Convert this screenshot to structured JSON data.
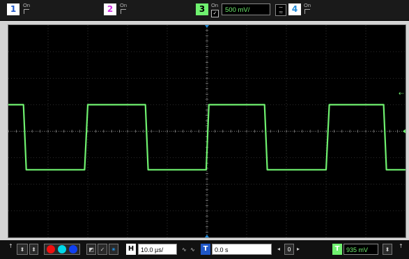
{
  "channels": [
    {
      "number": "1",
      "state": "On",
      "color": "#ffd200"
    },
    {
      "number": "2",
      "state": "On",
      "color": "#e040ff"
    },
    {
      "number": "3",
      "state": "On",
      "color": "#6ff16f"
    },
    {
      "number": "4",
      "state": "On",
      "color": "#40a0ff"
    }
  ],
  "ch3_scale": "500 mV/",
  "horizontal": {
    "label": "H",
    "scale": "10.0 µs/"
  },
  "trigger_time": {
    "label": "T",
    "value": "0.0 s"
  },
  "trigger_level": {
    "label": "T",
    "value": "935 mV"
  },
  "nav": {
    "zero": "0"
  },
  "colors": {
    "trace": "#6ff16f",
    "grid_bg": "#000000",
    "bar": "#1a1a1a"
  },
  "chart_data": {
    "type": "line",
    "description_kind": "square-wave trace",
    "x_divisions": 10,
    "y_divisions": 8,
    "series": [
      {
        "channel": "3",
        "points": [
          [
            0.0,
            1.0
          ],
          [
            0.38,
            1.0
          ],
          [
            0.45,
            -1.45
          ],
          [
            1.92,
            -1.45
          ],
          [
            2.0,
            1.0
          ],
          [
            3.45,
            1.0
          ],
          [
            3.52,
            -1.45
          ],
          [
            4.98,
            -1.45
          ],
          [
            5.05,
            1.0
          ],
          [
            6.45,
            1.0
          ],
          [
            6.52,
            -1.45
          ],
          [
            8.0,
            -1.45
          ],
          [
            8.08,
            1.0
          ],
          [
            9.45,
            1.0
          ],
          [
            9.52,
            -1.45
          ],
          [
            10.0,
            -1.45
          ]
        ]
      }
    ]
  }
}
